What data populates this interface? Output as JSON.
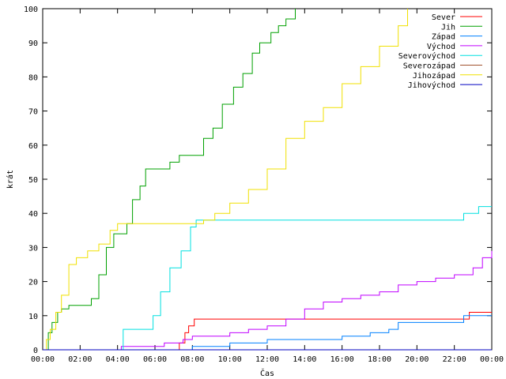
{
  "chart_data": {
    "type": "line",
    "xlabel": "Čas",
    "ylabel": "krát",
    "xlim": [
      0,
      24
    ],
    "ylim": [
      0,
      100
    ],
    "x_ticks": [
      "00:00",
      "02:00",
      "04:00",
      "06:00",
      "08:00",
      "10:00",
      "12:00",
      "14:00",
      "16:00",
      "18:00",
      "20:00",
      "22:00",
      "00:00"
    ],
    "y_ticks": [
      "0",
      "10",
      "20",
      "30",
      "40",
      "50",
      "60",
      "70",
      "80",
      "90",
      "100"
    ],
    "grid": false,
    "legend_position": "top-right",
    "series": [
      {
        "name": "Sever",
        "color": "#ff0000",
        "x": [
          0,
          7.3,
          7.6,
          7.8,
          8.1,
          22.5,
          22.8,
          24
        ],
        "y": [
          0,
          2,
          5,
          7,
          9,
          9,
          11,
          11
        ]
      },
      {
        "name": "Jih",
        "color": "#00a000",
        "x": [
          0,
          0.3,
          0.5,
          0.8,
          1.0,
          1.4,
          2.2,
          2.6,
          3.0,
          3.4,
          3.8,
          4.2,
          4.5,
          4.8,
          5.2,
          5.5,
          6.0,
          6.8,
          7.3,
          8.3,
          8.6,
          9.1,
          9.6,
          10.2,
          10.7,
          11.2,
          11.6,
          12.2,
          12.6,
          13.0,
          13.5
        ],
        "y": [
          0,
          5,
          8,
          11,
          12,
          13,
          13,
          15,
          22,
          30,
          34,
          34,
          37,
          44,
          48,
          53,
          53,
          55,
          57,
          57,
          62,
          65,
          72,
          77,
          81,
          87,
          90,
          93,
          95,
          97,
          100
        ]
      },
      {
        "name": "Západ",
        "color": "#0080ff",
        "x": [
          0,
          8.0,
          10.0,
          12.0,
          14.5,
          16.0,
          17.5,
          18.5,
          19.0,
          22.5,
          24
        ],
        "y": [
          0,
          1,
          2,
          3,
          3,
          4,
          5,
          6,
          8,
          10,
          10
        ]
      },
      {
        "name": "Východ",
        "color": "#c000ff",
        "x": [
          0,
          4.2,
          5.5,
          6.5,
          7.5,
          8.0,
          9.0,
          10.0,
          11.0,
          12.0,
          13.0,
          14.0,
          15.0,
          16.0,
          17.0,
          18.0,
          19.0,
          20.0,
          21.0,
          22.0,
          23.0,
          23.5,
          24
        ],
        "y": [
          0,
          1,
          1,
          2,
          3,
          4,
          4,
          5,
          6,
          7,
          9,
          12,
          14,
          15,
          16,
          17,
          19,
          20,
          21,
          22,
          24,
          27,
          29
        ]
      },
      {
        "name": "Severovýchod",
        "color": "#00e0e0",
        "x": [
          0,
          4.1,
          4.3,
          5.6,
          5.9,
          6.3,
          6.8,
          7.4,
          7.9,
          8.2,
          9.0,
          22.0,
          22.5,
          23.3,
          24
        ],
        "y": [
          0,
          0,
          6,
          6,
          10,
          17,
          24,
          29,
          36,
          38,
          38,
          38,
          40,
          42,
          42
        ]
      },
      {
        "name": "Severozápad",
        "color": "#a0522d",
        "x": [
          0,
          24
        ],
        "y": [
          0,
          0
        ]
      },
      {
        "name": "Jihozápad",
        "color": "#f0e000",
        "x": [
          0,
          0.2,
          0.4,
          0.7,
          1.0,
          1.4,
          1.8,
          2.4,
          3.0,
          3.6,
          4.0,
          6.0,
          8.0,
          8.6,
          9.2,
          10.0,
          11.0,
          12.0,
          13.0,
          14.0,
          15.0,
          16.0,
          17.0,
          18.0,
          19.0,
          19.5
        ],
        "y": [
          0,
          3,
          6,
          11,
          16,
          25,
          27,
          29,
          31,
          35,
          37,
          37,
          37,
          38,
          40,
          43,
          47,
          53,
          62,
          67,
          71,
          78,
          83,
          89,
          95,
          100
        ]
      },
      {
        "name": "Jihovýchod",
        "color": "#0000c0",
        "x": [
          0,
          4.0,
          4.1,
          24
        ],
        "y": [
          0,
          0,
          0,
          0
        ]
      }
    ]
  }
}
